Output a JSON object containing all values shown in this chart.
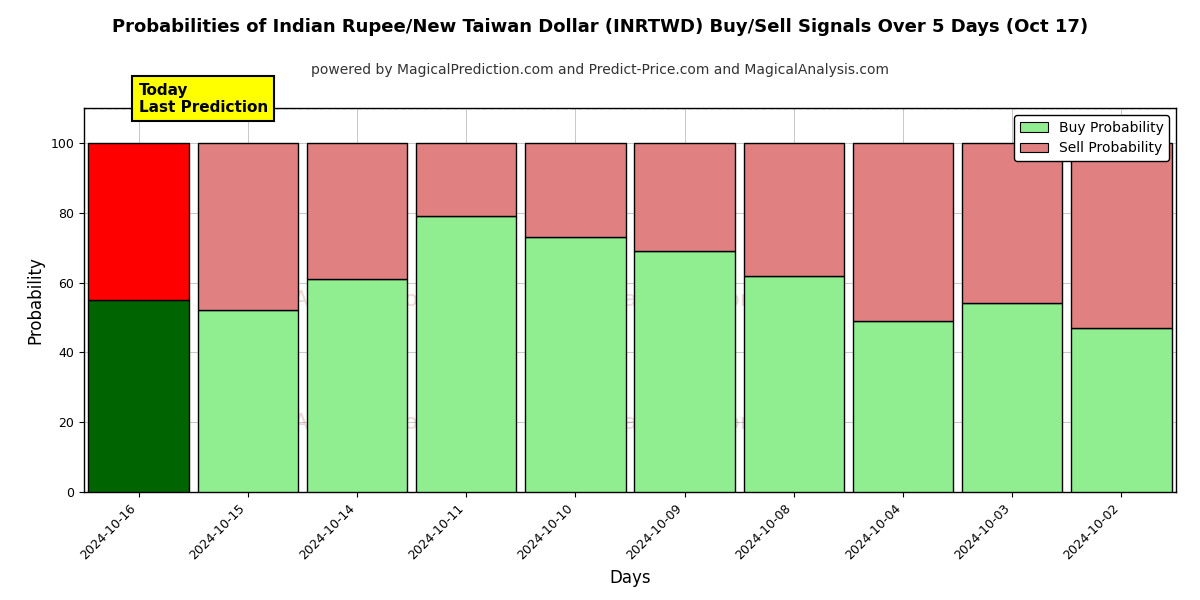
{
  "title": "Probabilities of Indian Rupee/New Taiwan Dollar (INRTWD) Buy/Sell Signals Over 5 Days (Oct 17)",
  "subtitle": "powered by MagicalPrediction.com and Predict-Price.com and MagicalAnalysis.com",
  "xlabel": "Days",
  "ylabel": "Probability",
  "categories": [
    "2024-10-16",
    "2024-10-15",
    "2024-10-14",
    "2024-10-11",
    "2024-10-10",
    "2024-10-09",
    "2024-10-08",
    "2024-10-04",
    "2024-10-03",
    "2024-10-02"
  ],
  "buy_values": [
    55,
    52,
    61,
    79,
    73,
    69,
    62,
    49,
    54,
    47
  ],
  "sell_values": [
    45,
    48,
    39,
    21,
    27,
    31,
    38,
    51,
    46,
    53
  ],
  "buy_color_first": "#006400",
  "buy_color_rest": "#90EE90",
  "sell_color_first": "#FF0000",
  "sell_color_rest": "#E08080",
  "annotation_text": "Today\nLast Prediction",
  "annotation_bg": "#FFFF00",
  "ylim": [
    0,
    110
  ],
  "dashed_line_y": 110,
  "legend_buy_label": "Buy Probability",
  "legend_sell_label": "Sell Probability",
  "bar_edge_color": "#000000",
  "bar_linewidth": 1.0,
  "title_fontsize": 13,
  "subtitle_fontsize": 10,
  "axis_label_fontsize": 12,
  "tick_fontsize": 9,
  "bar_width": 0.92
}
